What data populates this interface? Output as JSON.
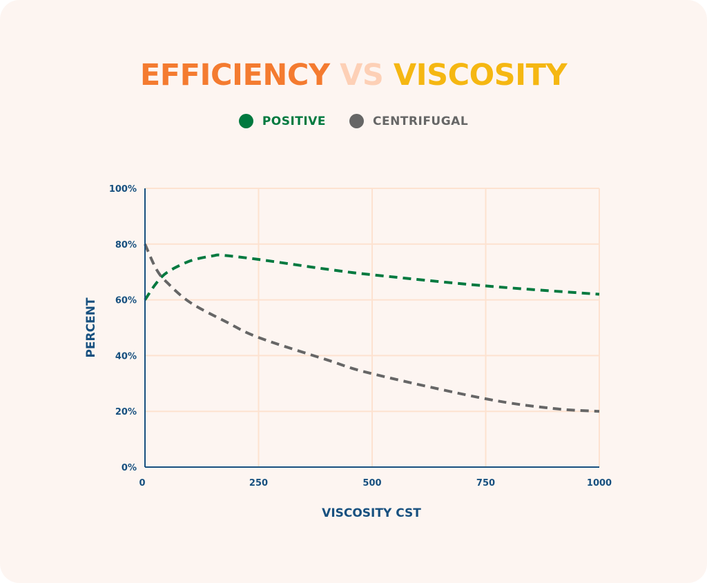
{
  "chart_data": {
    "type": "line",
    "title": {
      "part1": "EFFICIENCY",
      "part2": "VS",
      "part3": "VISCOSITY"
    },
    "title_colors": {
      "part1": "#f47b30",
      "part2": "#fdd0b6",
      "part3": "#f5b712"
    },
    "xlabel": "VISCOSITY CST",
    "ylabel": "PERCENT",
    "xlim": [
      0,
      1000
    ],
    "ylim": [
      0,
      100
    ],
    "x_ticks": [
      "0",
      "250",
      "500",
      "750",
      "1000"
    ],
    "x_tick_values": [
      0,
      250,
      500,
      750,
      1000
    ],
    "y_ticks": [
      "0%",
      "20%",
      "40%",
      "60%",
      "80%",
      "100%"
    ],
    "y_tick_values": [
      0,
      20,
      40,
      60,
      80,
      100
    ],
    "grid": true,
    "legend_placement": "top-center",
    "axis_color": "#17507f",
    "grid_color": "#fde2d0",
    "series": [
      {
        "name": "POSITIVE",
        "color": "#00793f",
        "style": "dashed",
        "x": [
          0,
          25,
          50,
          100,
          150,
          170,
          250,
          400,
          500,
          750,
          1000
        ],
        "y": [
          60,
          66,
          70,
          74,
          75.8,
          76,
          74.5,
          71,
          69,
          65,
          62
        ]
      },
      {
        "name": "CENTRIFUGAL",
        "color": "#666666",
        "style": "dashed",
        "x": [
          0,
          25,
          50,
          100,
          180,
          250,
          400,
          500,
          750,
          900,
          1000
        ],
        "y": [
          80,
          71,
          66,
          59,
          52,
          46.5,
          38.5,
          33.5,
          24.5,
          21,
          20
        ]
      }
    ]
  }
}
